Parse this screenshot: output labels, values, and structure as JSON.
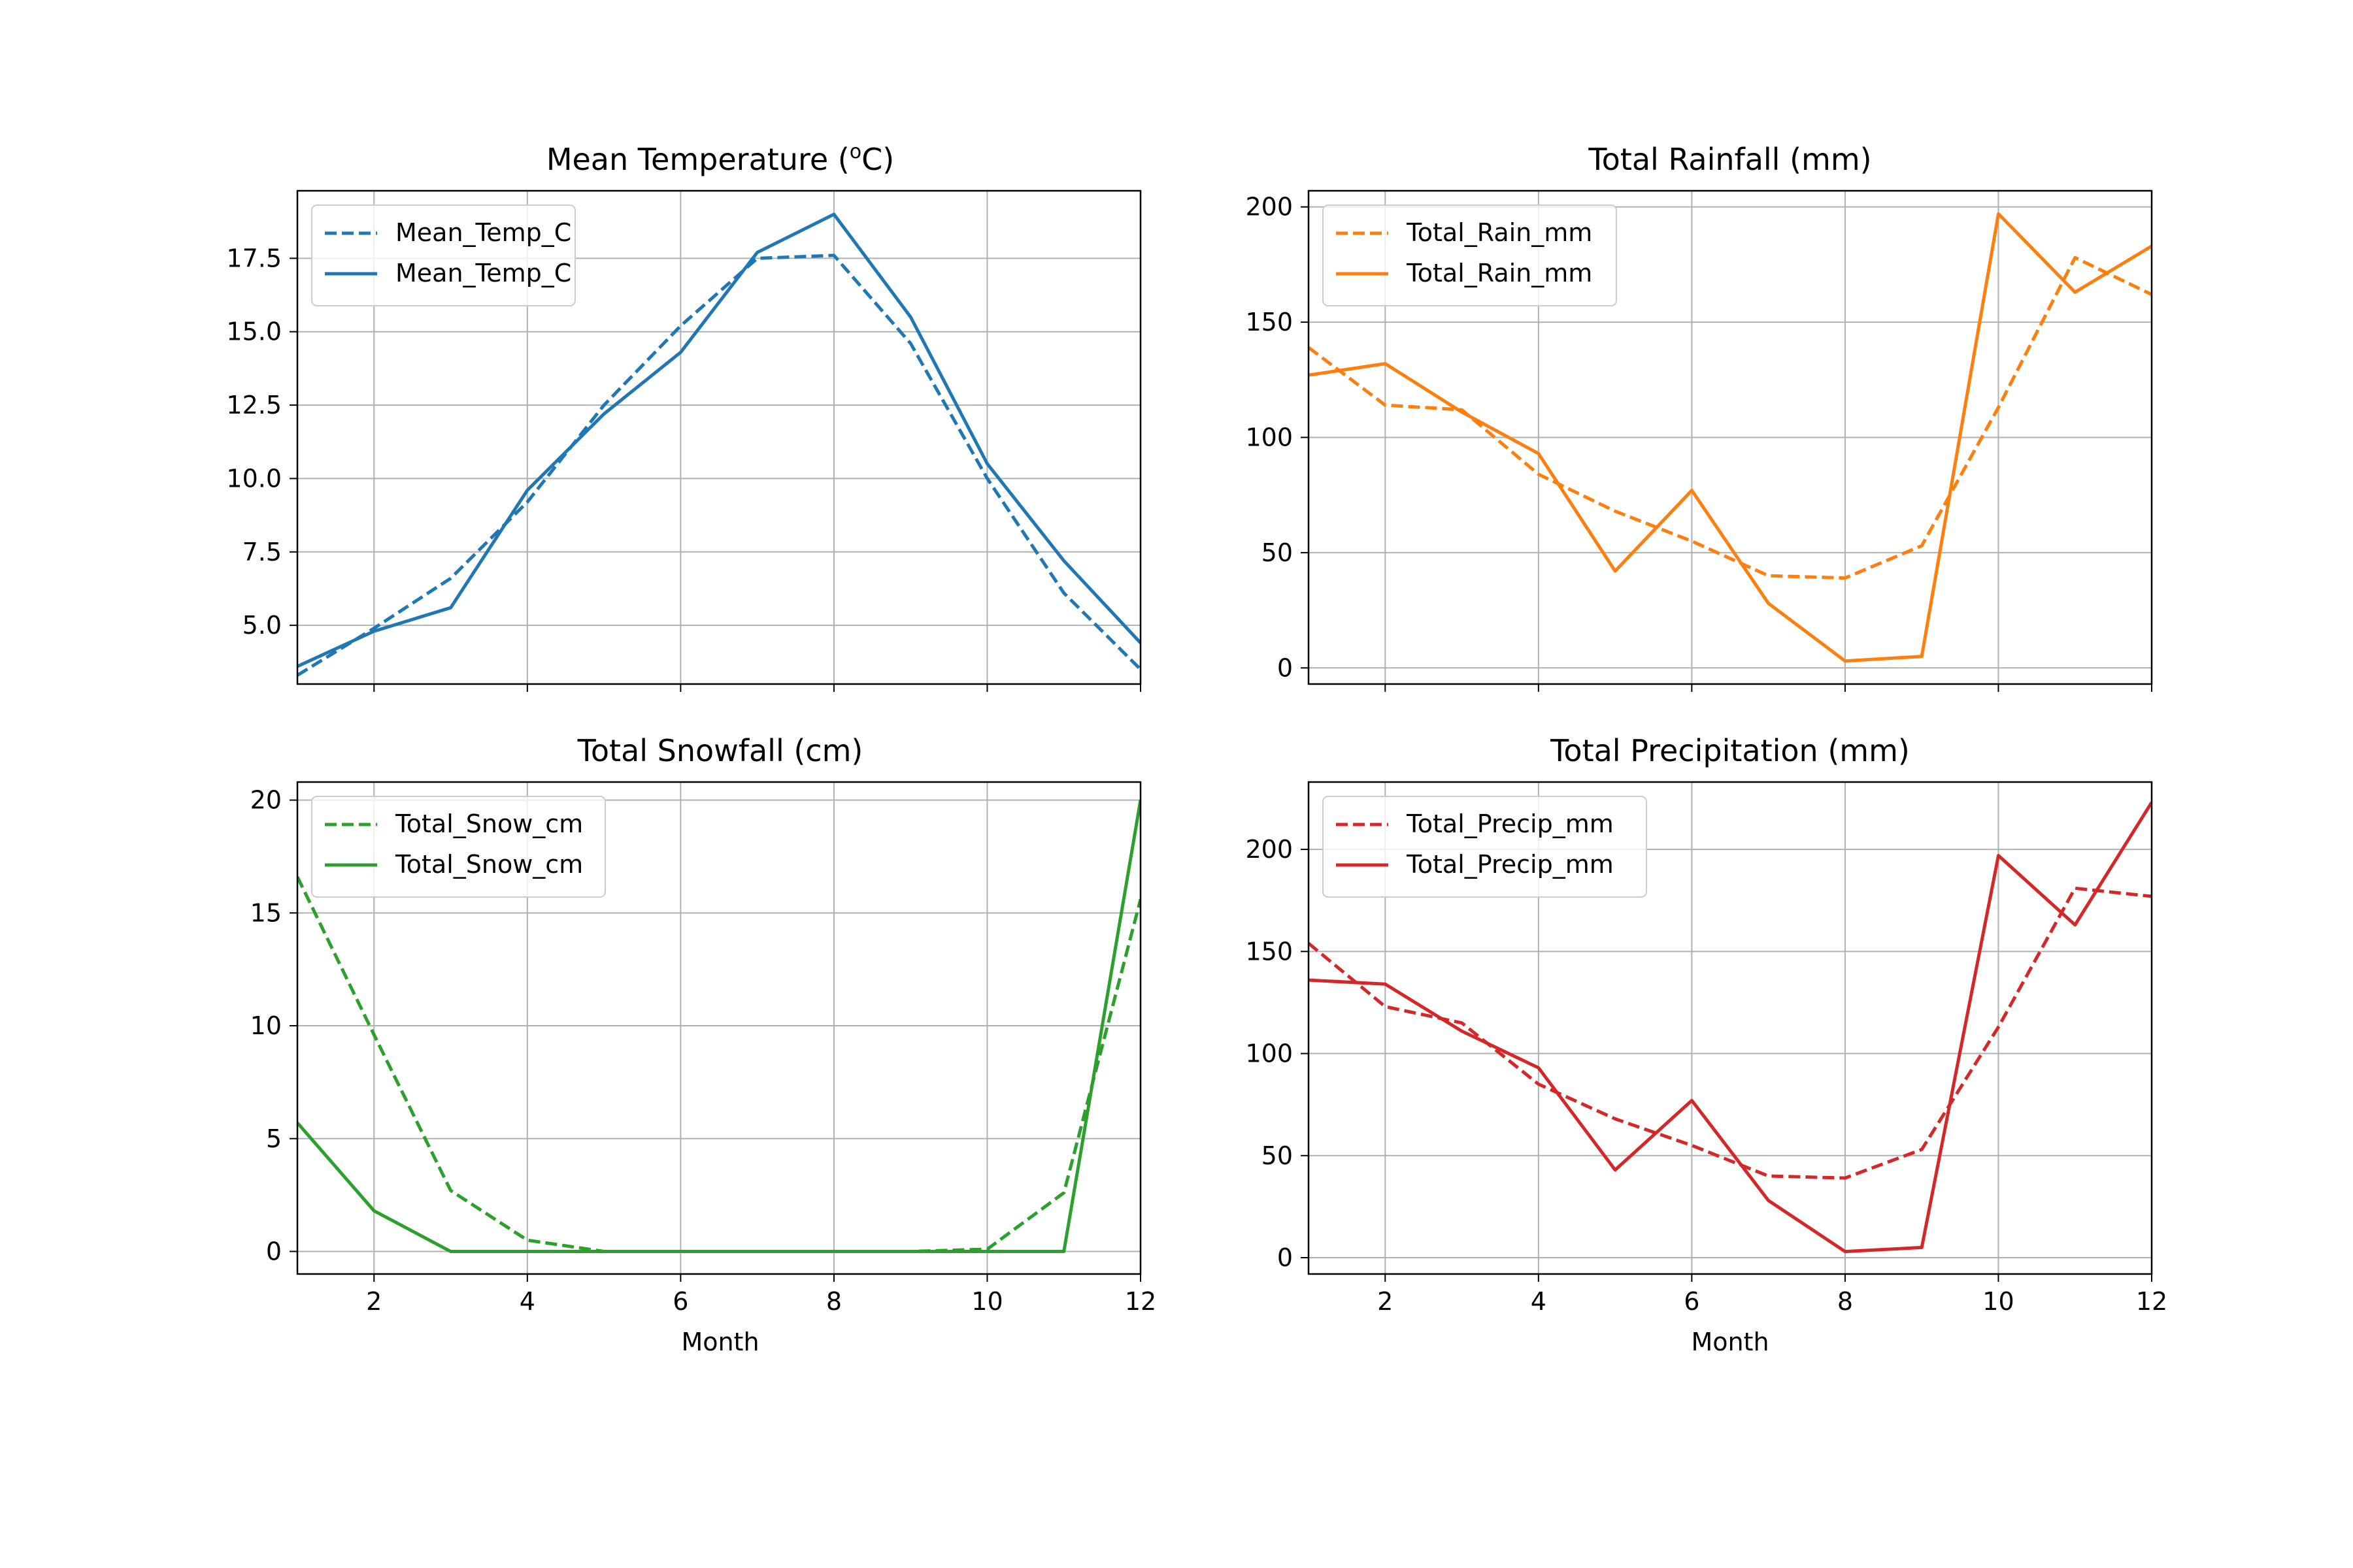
{
  "figure": {
    "background": "#ffffff"
  },
  "chart_data": [
    {
      "type": "line",
      "title": "Mean Temperature (°C)",
      "title_main": "Mean Temperature (",
      "title_super": "o",
      "title_tail": "C)",
      "xlabel": "",
      "ylabel": "",
      "xlim": [
        1,
        12
      ],
      "ylim": [
        3.0,
        19.8
      ],
      "x_ticks": [
        2,
        4,
        6,
        8,
        10,
        12
      ],
      "x_tick_labels": [
        "",
        "",
        "",
        "",
        "",
        ""
      ],
      "y_ticks": [
        5.0,
        7.5,
        10.0,
        12.5,
        15.0,
        17.5
      ],
      "y_tick_labels": [
        "5.0",
        "7.5",
        "10.0",
        "12.5",
        "15.0",
        "17.5"
      ],
      "grid": true,
      "legend": "top-left",
      "color": "#1f77b4",
      "x": [
        1,
        2,
        3,
        4,
        5,
        6,
        7,
        8,
        9,
        10,
        11,
        12
      ],
      "series": [
        {
          "name": "Mean_Temp_C",
          "style": "dashed",
          "values": [
            3.3,
            4.9,
            6.6,
            9.2,
            12.5,
            15.2,
            17.5,
            17.6,
            14.6,
            10.0,
            6.1,
            3.5
          ]
        },
        {
          "name": "Mean_Temp_C",
          "style": "solid",
          "values": [
            3.6,
            4.8,
            5.6,
            9.6,
            12.2,
            14.3,
            17.7,
            19.0,
            15.5,
            10.5,
            7.2,
            4.4
          ]
        }
      ]
    },
    {
      "type": "line",
      "title": "Total Rainfall (mm)",
      "xlabel": "",
      "ylabel": "",
      "xlim": [
        1,
        12
      ],
      "ylim": [
        -7,
        207
      ],
      "x_ticks": [
        2,
        4,
        6,
        8,
        10,
        12
      ],
      "x_tick_labels": [
        "",
        "",
        "",
        "",
        "",
        ""
      ],
      "y_ticks": [
        0,
        50,
        100,
        150,
        200
      ],
      "y_tick_labels": [
        "0",
        "50",
        "100",
        "150",
        "200"
      ],
      "grid": true,
      "legend": "top-left",
      "color": "#ff7f0e",
      "x": [
        1,
        2,
        3,
        4,
        5,
        6,
        7,
        8,
        9,
        10,
        11,
        12
      ],
      "series": [
        {
          "name": "Total_Rain_mm",
          "style": "dashed",
          "values": [
            139,
            114,
            112,
            84,
            68,
            55,
            40,
            39,
            53,
            113,
            178,
            162
          ]
        },
        {
          "name": "Total_Rain_mm",
          "style": "solid",
          "values": [
            127,
            132,
            111,
            93,
            42,
            77,
            28,
            3,
            5,
            197,
            163,
            183
          ]
        }
      ]
    },
    {
      "type": "line",
      "title": "Total Snowfall (cm)",
      "xlabel": "Month",
      "ylabel": "",
      "xlim": [
        1,
        12
      ],
      "ylim": [
        -1,
        20.8
      ],
      "x_ticks": [
        2,
        4,
        6,
        8,
        10,
        12
      ],
      "x_tick_labels": [
        "2",
        "4",
        "6",
        "8",
        "10",
        "12"
      ],
      "y_ticks": [
        0,
        5,
        10,
        15,
        20
      ],
      "y_tick_labels": [
        "0",
        "5",
        "10",
        "15",
        "20"
      ],
      "grid": true,
      "legend": "top-left",
      "color": "#2ca02c",
      "x": [
        1,
        2,
        3,
        4,
        5,
        6,
        7,
        8,
        9,
        10,
        11,
        12
      ],
      "series": [
        {
          "name": "Total_Snow_cm",
          "style": "dashed",
          "values": [
            16.6,
            9.6,
            2.7,
            0.5,
            0,
            0,
            0,
            0,
            0,
            0.1,
            2.6,
            15.6
          ]
        },
        {
          "name": "Total_Snow_cm",
          "style": "solid",
          "values": [
            5.7,
            1.8,
            0,
            0,
            0,
            0,
            0,
            0,
            0,
            0,
            0,
            20.0
          ]
        }
      ]
    },
    {
      "type": "line",
      "title": "Total Precipitation (mm)",
      "xlabel": "Month",
      "ylabel": "",
      "xlim": [
        1,
        12
      ],
      "ylim": [
        -8,
        233
      ],
      "x_ticks": [
        2,
        4,
        6,
        8,
        10,
        12
      ],
      "x_tick_labels": [
        "2",
        "4",
        "6",
        "8",
        "10",
        "12"
      ],
      "y_ticks": [
        0,
        50,
        100,
        150,
        200
      ],
      "y_tick_labels": [
        "0",
        "50",
        "100",
        "150",
        "200"
      ],
      "grid": true,
      "legend": "top-left",
      "color": "#d62728",
      "x": [
        1,
        2,
        3,
        4,
        5,
        6,
        7,
        8,
        9,
        10,
        11,
        12
      ],
      "series": [
        {
          "name": "Total_Precip_mm",
          "style": "dashed",
          "values": [
            154,
            123,
            115,
            85,
            68,
            55,
            40,
            39,
            53,
            113,
            181,
            177
          ]
        },
        {
          "name": "Total_Precip_mm",
          "style": "solid",
          "values": [
            136,
            134,
            111,
            93,
            43,
            77,
            28,
            3,
            5,
            197,
            163,
            223
          ]
        }
      ]
    }
  ]
}
